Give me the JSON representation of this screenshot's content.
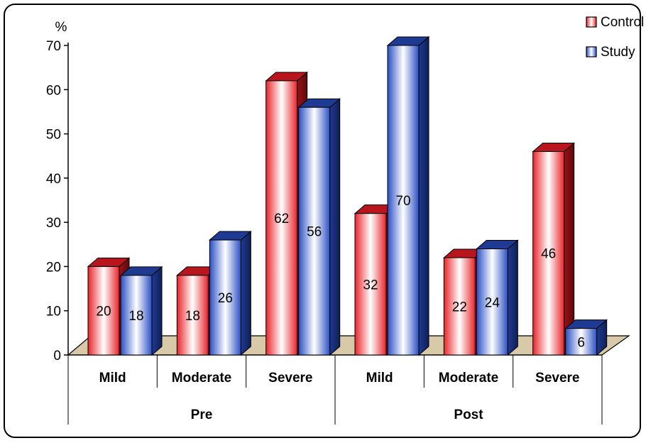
{
  "chart_data": {
    "type": "bar",
    "ylabel": "%",
    "ylim": [
      0,
      70
    ],
    "yticks": [
      0,
      10,
      20,
      30,
      40,
      50,
      60,
      70
    ],
    "groups": [
      "Pre",
      "Post"
    ],
    "categories": [
      "Mild",
      "Moderate",
      "Severe",
      "Mild",
      "Moderate",
      "Severe"
    ],
    "category_group": [
      "Pre",
      "Pre",
      "Pre",
      "Post",
      "Post",
      "Post"
    ],
    "series": [
      {
        "name": "Control",
        "values": [
          20,
          18,
          62,
          32,
          22,
          46
        ],
        "color": "#e8242a"
      },
      {
        "name": "Study",
        "values": [
          18,
          26,
          56,
          70,
          24,
          6
        ],
        "color": "#2a4fc4"
      }
    ],
    "legend_position": "top-right",
    "style": "3d-cylinder-shaded",
    "floor_color": "#d8c9a8"
  }
}
